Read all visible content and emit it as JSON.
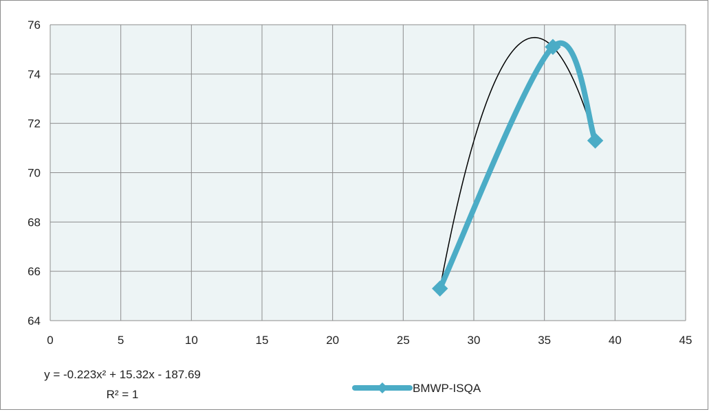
{
  "chart_data": {
    "type": "scatter",
    "title": "",
    "xlabel": "",
    "ylabel": "",
    "xlim": [
      0,
      45
    ],
    "ylim": [
      64,
      76
    ],
    "x_ticks": [
      "0",
      "5",
      "10",
      "15",
      "20",
      "25",
      "30",
      "35",
      "40",
      "45"
    ],
    "y_ticks": [
      "64",
      "66",
      "68",
      "70",
      "72",
      "74",
      "76"
    ],
    "grid": true,
    "plot_background": "#edf4f5",
    "series": [
      {
        "name": "BMWP-ISQA",
        "color": "#4bacc6",
        "smooth": true,
        "marker": "diamond",
        "x": [
          27.6,
          35.6,
          38.6
        ],
        "y": [
          65.3,
          75.1,
          71.3
        ]
      }
    ],
    "trendline": {
      "type": "polynomial",
      "color": "#000000",
      "equation": "y = -0.223x² + 15.32x - 187.69",
      "r_squared": "R² = 1"
    },
    "legend_position": "bottom"
  }
}
